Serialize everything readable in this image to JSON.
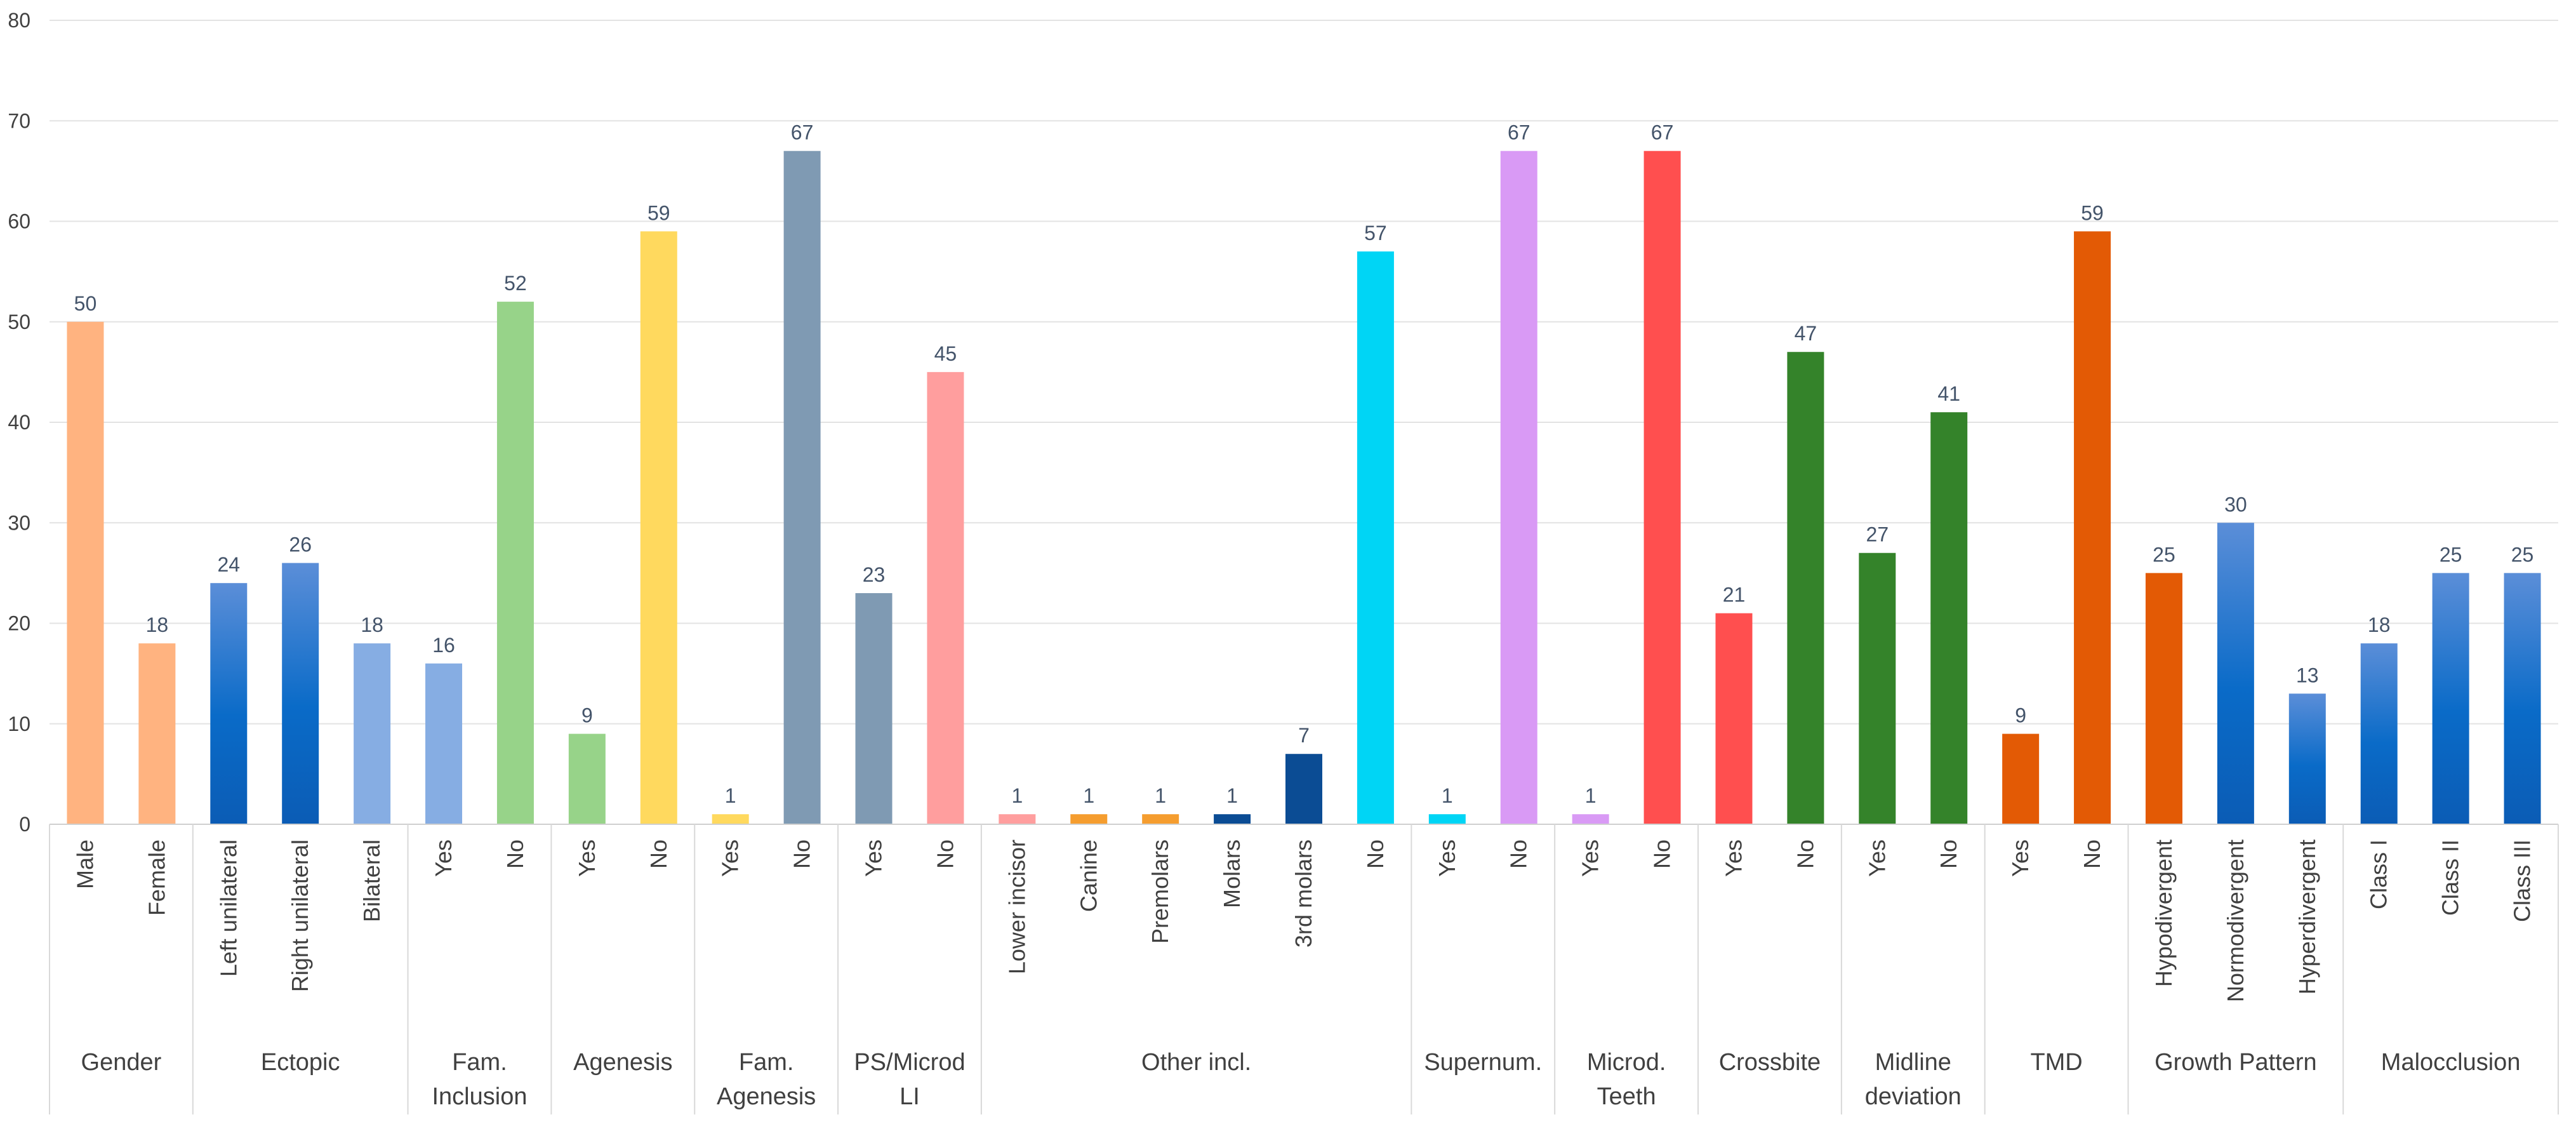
{
  "chart_data": {
    "type": "bar",
    "title": "",
    "xlabel": "",
    "ylabel": "",
    "ylim": [
      0,
      80
    ],
    "yticks": [
      0,
      10,
      20,
      30,
      40,
      50,
      60,
      70,
      80
    ],
    "grid": true,
    "legend": "none",
    "groups": [
      {
        "label": "Gender",
        "bars": [
          {
            "category": "Male",
            "value": 50,
            "color": "#FFB380"
          },
          {
            "category": "Female",
            "value": 18,
            "color": "#FFB380"
          }
        ]
      },
      {
        "label": "Ectopic",
        "bars": [
          {
            "category": "Left unilateral",
            "value": 24,
            "color": "gradient-blue"
          },
          {
            "category": "Right unilateral",
            "value": 26,
            "color": "gradient-blue"
          },
          {
            "category": "Bilateral",
            "value": 18,
            "color": "#86ADE3"
          }
        ]
      },
      {
        "label": "Fam. Inclusion",
        "bars": [
          {
            "category": "Yes",
            "value": 16,
            "color": "#86ADE3"
          },
          {
            "category": "No",
            "value": 52,
            "color": "#97D389"
          }
        ]
      },
      {
        "label": "Agenesis",
        "bars": [
          {
            "category": "Yes",
            "value": 9,
            "color": "#97D389"
          },
          {
            "category": "No",
            "value": 59,
            "color": "#FFD95E"
          }
        ]
      },
      {
        "label": "Fam. Agenesis",
        "bars": [
          {
            "category": "Yes",
            "value": 1,
            "color": "#FFD95E"
          },
          {
            "category": "No",
            "value": 67,
            "color": "#7F9AB3"
          }
        ]
      },
      {
        "label": "PS/Microd LI",
        "bars": [
          {
            "category": "Yes",
            "value": 23,
            "color": "#7F9AB3"
          },
          {
            "category": "No",
            "value": 45,
            "color": "#FF9E9E"
          }
        ]
      },
      {
        "label": "Other incl.",
        "bars": [
          {
            "category": "Lower incisor",
            "value": 1,
            "color": "#FF9E9E"
          },
          {
            "category": "Canine",
            "value": 1,
            "color": "#F59D2F"
          },
          {
            "category": "Premolars",
            "value": 1,
            "color": "#F59D2F"
          },
          {
            "category": "Molars",
            "value": 1,
            "color": "#0B4C94"
          },
          {
            "category": "3rd molars",
            "value": 7,
            "color": "#0B4C94"
          },
          {
            "category": "No",
            "value": 57,
            "color": "#00D5F5"
          }
        ]
      },
      {
        "label": "Supernum.",
        "bars": [
          {
            "category": "Yes",
            "value": 1,
            "color": "#00D5F5"
          },
          {
            "category": "No",
            "value": 67,
            "color": "#D99AF5"
          }
        ]
      },
      {
        "label": "Microd. Teeth",
        "bars": [
          {
            "category": "Yes",
            "value": 1,
            "color": "#D99AF5"
          },
          {
            "category": "No",
            "value": 67,
            "color": "#FF4F4F"
          }
        ]
      },
      {
        "label": "Crossbite",
        "bars": [
          {
            "category": "Yes",
            "value": 21,
            "color": "#FF4F4F"
          },
          {
            "category": "No",
            "value": 47,
            "color": "#34832A"
          }
        ]
      },
      {
        "label": "Midline deviation",
        "bars": [
          {
            "category": "Yes",
            "value": 27,
            "color": "#34832A"
          },
          {
            "category": "No",
            "value": 41,
            "color": "#34832A"
          }
        ]
      },
      {
        "label": "TMD",
        "bars": [
          {
            "category": "Yes",
            "value": 9,
            "color": "#E35A05"
          },
          {
            "category": "No",
            "value": 59,
            "color": "#E35A05"
          }
        ]
      },
      {
        "label": "Growth Pattern",
        "bars": [
          {
            "category": "Hypodivergent",
            "value": 25,
            "color": "#E35A05"
          },
          {
            "category": "Normodivergent",
            "value": 30,
            "color": "gradient-blue"
          },
          {
            "category": "Hyperdivergent",
            "value": 13,
            "color": "gradient-blue"
          }
        ]
      },
      {
        "label": "Malocclusion",
        "bars": [
          {
            "category": "Class I",
            "value": 18,
            "color": "gradient-blue"
          },
          {
            "category": "Class II",
            "value": 25,
            "color": "gradient-blue"
          },
          {
            "category": "Class III",
            "value": 25,
            "color": "gradient-blue"
          }
        ]
      }
    ]
  }
}
